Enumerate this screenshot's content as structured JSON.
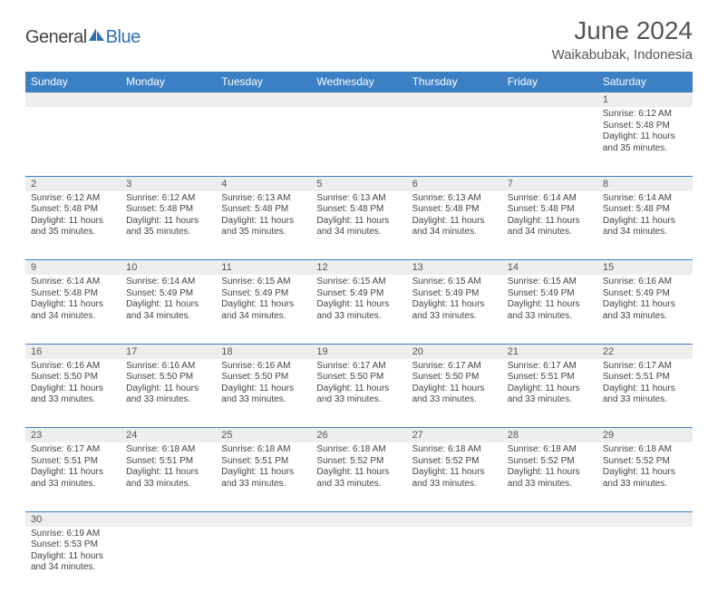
{
  "brand": {
    "part1": "General",
    "part2": "Blue"
  },
  "title": "June 2024",
  "location": "Waikabubak, Indonesia",
  "colors": {
    "header_bg": "#3b7fc4",
    "header_fg": "#ffffff",
    "daynum_bg": "#eeeeee",
    "text": "#444444",
    "rule": "#3b7fc4"
  },
  "day_headers": [
    "Sunday",
    "Monday",
    "Tuesday",
    "Wednesday",
    "Thursday",
    "Friday",
    "Saturday"
  ],
  "weeks": [
    [
      null,
      null,
      null,
      null,
      null,
      null,
      {
        "n": "1",
        "sr": "Sunrise: 6:12 AM",
        "ss": "Sunset: 5:48 PM",
        "d1": "Daylight: 11 hours",
        "d2": "and 35 minutes."
      }
    ],
    [
      {
        "n": "2",
        "sr": "Sunrise: 6:12 AM",
        "ss": "Sunset: 5:48 PM",
        "d1": "Daylight: 11 hours",
        "d2": "and 35 minutes."
      },
      {
        "n": "3",
        "sr": "Sunrise: 6:12 AM",
        "ss": "Sunset: 5:48 PM",
        "d1": "Daylight: 11 hours",
        "d2": "and 35 minutes."
      },
      {
        "n": "4",
        "sr": "Sunrise: 6:13 AM",
        "ss": "Sunset: 5:48 PM",
        "d1": "Daylight: 11 hours",
        "d2": "and 35 minutes."
      },
      {
        "n": "5",
        "sr": "Sunrise: 6:13 AM",
        "ss": "Sunset: 5:48 PM",
        "d1": "Daylight: 11 hours",
        "d2": "and 34 minutes."
      },
      {
        "n": "6",
        "sr": "Sunrise: 6:13 AM",
        "ss": "Sunset: 5:48 PM",
        "d1": "Daylight: 11 hours",
        "d2": "and 34 minutes."
      },
      {
        "n": "7",
        "sr": "Sunrise: 6:14 AM",
        "ss": "Sunset: 5:48 PM",
        "d1": "Daylight: 11 hours",
        "d2": "and 34 minutes."
      },
      {
        "n": "8",
        "sr": "Sunrise: 6:14 AM",
        "ss": "Sunset: 5:48 PM",
        "d1": "Daylight: 11 hours",
        "d2": "and 34 minutes."
      }
    ],
    [
      {
        "n": "9",
        "sr": "Sunrise: 6:14 AM",
        "ss": "Sunset: 5:48 PM",
        "d1": "Daylight: 11 hours",
        "d2": "and 34 minutes."
      },
      {
        "n": "10",
        "sr": "Sunrise: 6:14 AM",
        "ss": "Sunset: 5:49 PM",
        "d1": "Daylight: 11 hours",
        "d2": "and 34 minutes."
      },
      {
        "n": "11",
        "sr": "Sunrise: 6:15 AM",
        "ss": "Sunset: 5:49 PM",
        "d1": "Daylight: 11 hours",
        "d2": "and 34 minutes."
      },
      {
        "n": "12",
        "sr": "Sunrise: 6:15 AM",
        "ss": "Sunset: 5:49 PM",
        "d1": "Daylight: 11 hours",
        "d2": "and 33 minutes."
      },
      {
        "n": "13",
        "sr": "Sunrise: 6:15 AM",
        "ss": "Sunset: 5:49 PM",
        "d1": "Daylight: 11 hours",
        "d2": "and 33 minutes."
      },
      {
        "n": "14",
        "sr": "Sunrise: 6:15 AM",
        "ss": "Sunset: 5:49 PM",
        "d1": "Daylight: 11 hours",
        "d2": "and 33 minutes."
      },
      {
        "n": "15",
        "sr": "Sunrise: 6:16 AM",
        "ss": "Sunset: 5:49 PM",
        "d1": "Daylight: 11 hours",
        "d2": "and 33 minutes."
      }
    ],
    [
      {
        "n": "16",
        "sr": "Sunrise: 6:16 AM",
        "ss": "Sunset: 5:50 PM",
        "d1": "Daylight: 11 hours",
        "d2": "and 33 minutes."
      },
      {
        "n": "17",
        "sr": "Sunrise: 6:16 AM",
        "ss": "Sunset: 5:50 PM",
        "d1": "Daylight: 11 hours",
        "d2": "and 33 minutes."
      },
      {
        "n": "18",
        "sr": "Sunrise: 6:16 AM",
        "ss": "Sunset: 5:50 PM",
        "d1": "Daylight: 11 hours",
        "d2": "and 33 minutes."
      },
      {
        "n": "19",
        "sr": "Sunrise: 6:17 AM",
        "ss": "Sunset: 5:50 PM",
        "d1": "Daylight: 11 hours",
        "d2": "and 33 minutes."
      },
      {
        "n": "20",
        "sr": "Sunrise: 6:17 AM",
        "ss": "Sunset: 5:50 PM",
        "d1": "Daylight: 11 hours",
        "d2": "and 33 minutes."
      },
      {
        "n": "21",
        "sr": "Sunrise: 6:17 AM",
        "ss": "Sunset: 5:51 PM",
        "d1": "Daylight: 11 hours",
        "d2": "and 33 minutes."
      },
      {
        "n": "22",
        "sr": "Sunrise: 6:17 AM",
        "ss": "Sunset: 5:51 PM",
        "d1": "Daylight: 11 hours",
        "d2": "and 33 minutes."
      }
    ],
    [
      {
        "n": "23",
        "sr": "Sunrise: 6:17 AM",
        "ss": "Sunset: 5:51 PM",
        "d1": "Daylight: 11 hours",
        "d2": "and 33 minutes."
      },
      {
        "n": "24",
        "sr": "Sunrise: 6:18 AM",
        "ss": "Sunset: 5:51 PM",
        "d1": "Daylight: 11 hours",
        "d2": "and 33 minutes."
      },
      {
        "n": "25",
        "sr": "Sunrise: 6:18 AM",
        "ss": "Sunset: 5:51 PM",
        "d1": "Daylight: 11 hours",
        "d2": "and 33 minutes."
      },
      {
        "n": "26",
        "sr": "Sunrise: 6:18 AM",
        "ss": "Sunset: 5:52 PM",
        "d1": "Daylight: 11 hours",
        "d2": "and 33 minutes."
      },
      {
        "n": "27",
        "sr": "Sunrise: 6:18 AM",
        "ss": "Sunset: 5:52 PM",
        "d1": "Daylight: 11 hours",
        "d2": "and 33 minutes."
      },
      {
        "n": "28",
        "sr": "Sunrise: 6:18 AM",
        "ss": "Sunset: 5:52 PM",
        "d1": "Daylight: 11 hours",
        "d2": "and 33 minutes."
      },
      {
        "n": "29",
        "sr": "Sunrise: 6:18 AM",
        "ss": "Sunset: 5:52 PM",
        "d1": "Daylight: 11 hours",
        "d2": "and 33 minutes."
      }
    ],
    [
      {
        "n": "30",
        "sr": "Sunrise: 6:19 AM",
        "ss": "Sunset: 5:53 PM",
        "d1": "Daylight: 11 hours",
        "d2": "and 34 minutes."
      },
      null,
      null,
      null,
      null,
      null,
      null
    ]
  ]
}
